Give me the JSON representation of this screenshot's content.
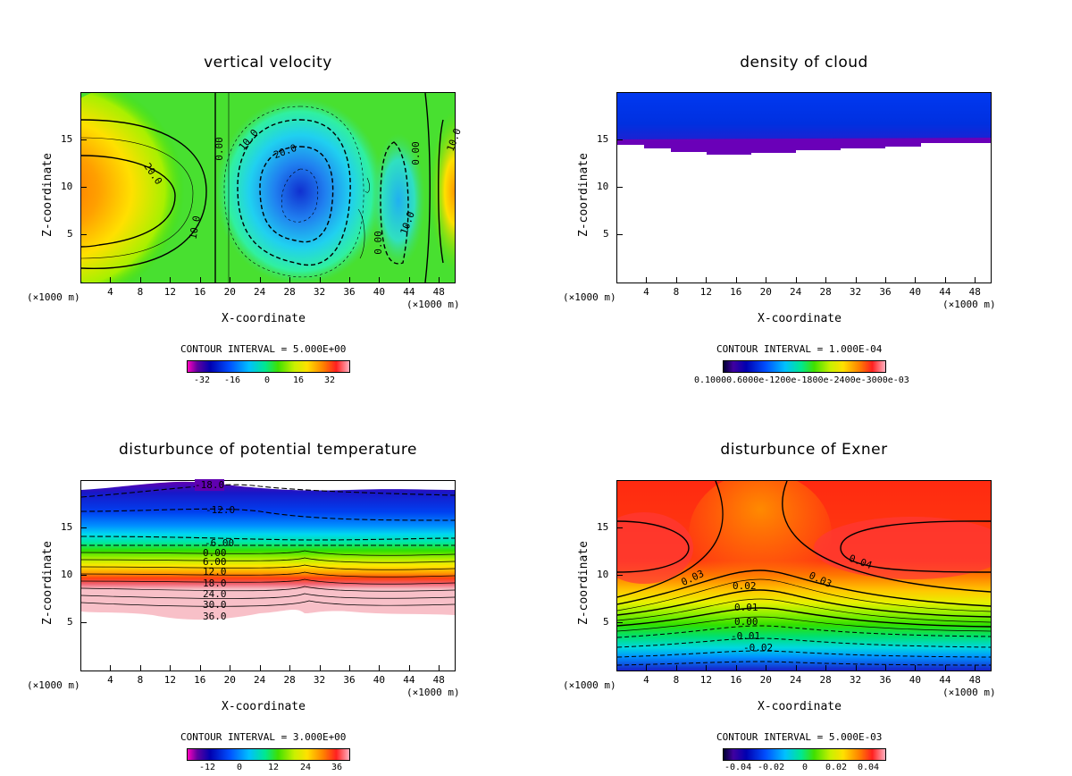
{
  "chart_data": [
    {
      "type": "heatmap",
      "title": "vertical velocity",
      "xlabel": "X-coordinate",
      "ylabel": "Z-coordinate",
      "x_unit": "(×1000 m)",
      "x_ticks": [
        "4",
        "8",
        "12",
        "16",
        "20",
        "24",
        "28",
        "32",
        "36",
        "40",
        "44",
        "48"
      ],
      "y_ticks": [
        "5",
        "10",
        "15"
      ],
      "xlim": [
        0,
        50
      ],
      "ylim": [
        0,
        20
      ],
      "contour_interval": "CONTOUR INTERVAL = 5.000E+00",
      "colorbar_labels": [
        "-32",
        "-16",
        "0",
        "16",
        "32"
      ],
      "contour_labels": [
        "20.0",
        "10.0",
        "0.00",
        "10.0",
        "20.0",
        "0.00",
        "10.0",
        "0.00",
        "10.0"
      ]
    },
    {
      "type": "heatmap",
      "title": "density of cloud",
      "xlabel": "X-coordinate",
      "ylabel": "Z-coordinate",
      "x_unit": "(×1000 m)",
      "x_ticks": [
        "4",
        "8",
        "12",
        "16",
        "20",
        "24",
        "28",
        "32",
        "36",
        "40",
        "44",
        "48"
      ],
      "y_ticks": [
        "5",
        "10",
        "15"
      ],
      "xlim": [
        0,
        50
      ],
      "ylim": [
        0,
        20
      ],
      "contour_interval": "CONTOUR INTERVAL = 1.000E-04",
      "colorbar_text": "0.10000.6000e-1200e-1800e-2400e-3000e-03"
    },
    {
      "type": "heatmap",
      "title": "disturbunce of potential temperature",
      "xlabel": "X-coordinate",
      "ylabel": "Z-coordinate",
      "x_unit": "(×1000 m)",
      "x_ticks": [
        "4",
        "8",
        "12",
        "16",
        "20",
        "24",
        "28",
        "32",
        "36",
        "40",
        "44",
        "48"
      ],
      "y_ticks": [
        "5",
        "10",
        "15"
      ],
      "xlim": [
        0,
        50
      ],
      "ylim": [
        0,
        20
      ],
      "contour_interval": "CONTOUR INTERVAL = 3.000E+00",
      "colorbar_labels": [
        "-12",
        "0",
        "12",
        "24",
        "36"
      ],
      "contour_labels": [
        "-18.0",
        "-12.0",
        "-6.00",
        "0.00",
        "6.00",
        "12.0",
        "18.0",
        "24.0",
        "30.0",
        "36.0"
      ]
    },
    {
      "type": "heatmap",
      "title": "disturbunce of Exner",
      "xlabel": "X-coordinate",
      "ylabel": "Z-coordinate",
      "x_unit": "(×1000 m)",
      "x_ticks": [
        "4",
        "8",
        "12",
        "16",
        "20",
        "24",
        "28",
        "32",
        "36",
        "40",
        "44",
        "48"
      ],
      "y_ticks": [
        "5",
        "10",
        "15"
      ],
      "xlim": [
        0,
        50
      ],
      "ylim": [
        0,
        20
      ],
      "contour_interval": "CONTOUR INTERVAL = 5.000E-03",
      "colorbar_labels": [
        "-0.04",
        "-0.02",
        "0",
        "0.02",
        "0.04"
      ],
      "contour_labels": [
        "0.04",
        "0.03",
        "0.03",
        "0.02",
        "0.01",
        "0.00",
        "-0.01",
        "-0.02"
      ]
    }
  ]
}
